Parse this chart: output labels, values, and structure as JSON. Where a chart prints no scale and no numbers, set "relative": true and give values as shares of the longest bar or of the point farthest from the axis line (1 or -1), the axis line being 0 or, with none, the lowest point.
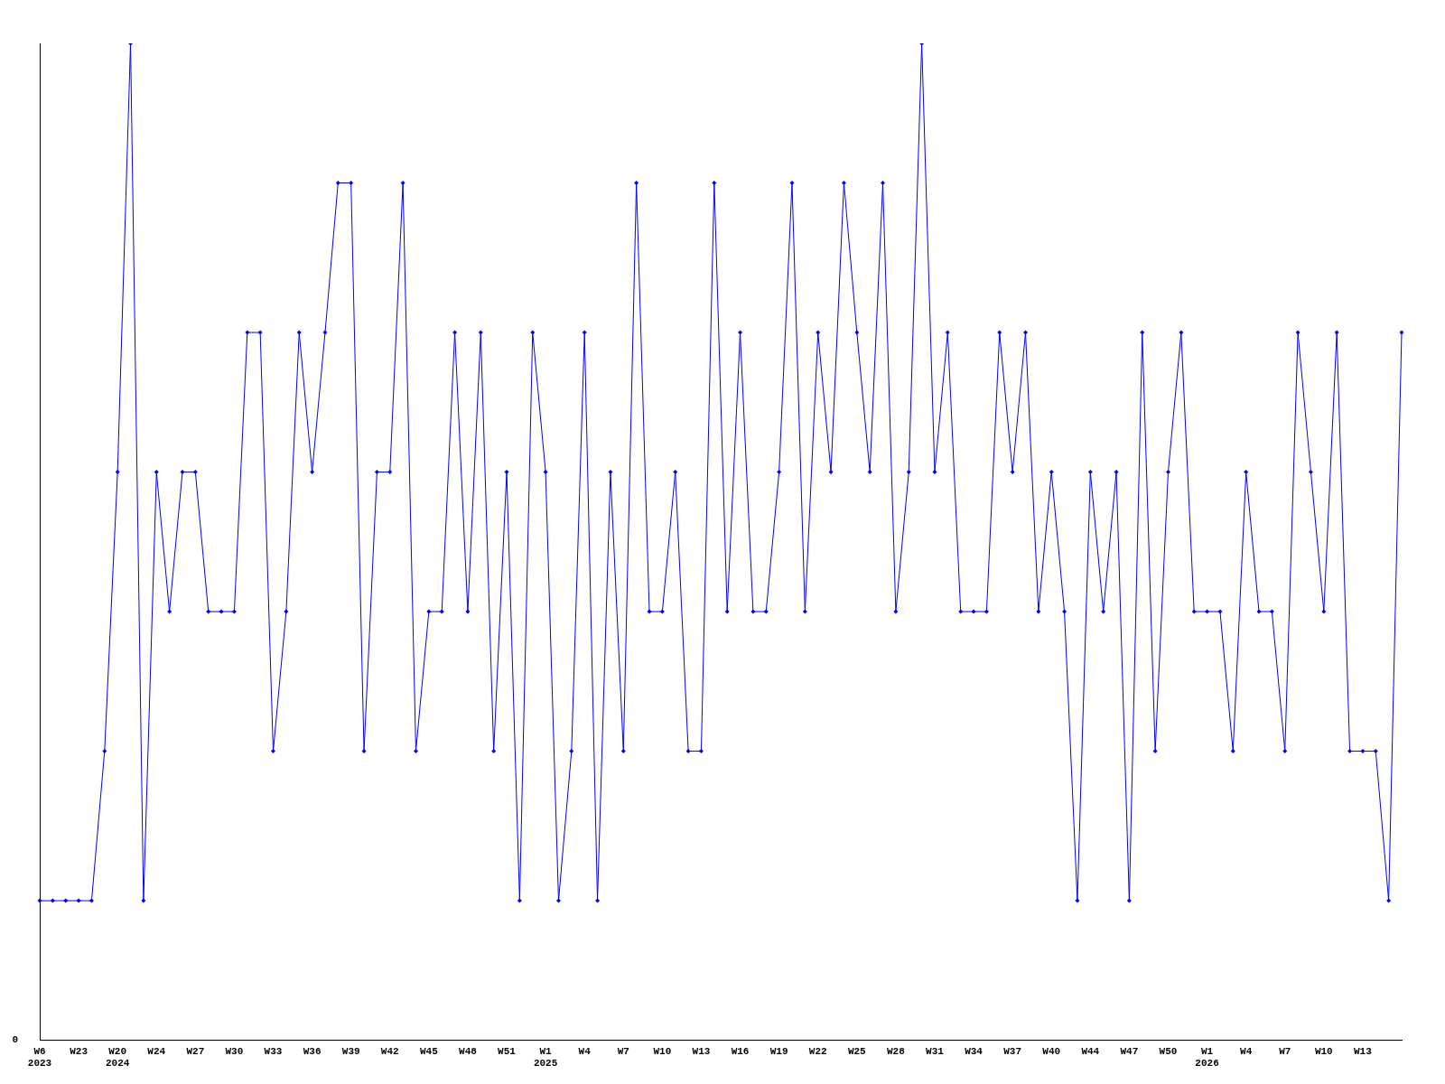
{
  "chart_data": {
    "type": "line",
    "relative": true,
    "color": "#0000ff",
    "marker": "diamond",
    "line_style": "solid",
    "grid": false,
    "legend": false,
    "annotations": [
      "0"
    ],
    "categories": [
      "W6\n2023",
      null,
      null,
      "W23",
      null,
      null,
      "W20\n2024",
      null,
      null,
      "W24",
      null,
      null,
      "W27",
      null,
      null,
      "W30",
      null,
      null,
      "W33",
      null,
      null,
      "W36",
      null,
      null,
      "W39",
      null,
      null,
      "W42",
      null,
      null,
      "W45",
      null,
      null,
      "W48",
      null,
      null,
      "W51",
      null,
      null,
      "W1\n2025",
      null,
      null,
      "W4",
      null,
      null,
      "W7",
      null,
      null,
      "W10",
      null,
      null,
      "W13",
      null,
      null,
      "W16",
      null,
      null,
      "W19",
      null,
      null,
      "W22",
      null,
      null,
      "W25",
      null,
      null,
      "W28",
      null,
      null,
      "W31",
      null,
      null,
      "W34",
      null,
      null,
      "W37",
      null,
      null,
      "W40",
      null,
      null,
      "W44",
      null,
      null,
      "W47",
      null,
      null,
      "W50",
      null,
      null,
      "W1\n2026",
      null,
      null,
      "W4",
      null,
      null,
      "W7",
      null,
      null,
      "W10",
      null,
      null,
      "W13",
      null,
      null,
      null
    ],
    "values": [
      0.14,
      0.14,
      0.14,
      0.14,
      0.14,
      0.29,
      0.57,
      1,
      0.14,
      0.57,
      0.43,
      0.57,
      0.57,
      0.43,
      0.43,
      0.43,
      0.71,
      0.71,
      0.29,
      0.43,
      0.71,
      0.57,
      0.71,
      0.86,
      0.86,
      0.29,
      0.57,
      0.57,
      0.86,
      0.29,
      0.43,
      0.43,
      0.71,
      0.43,
      0.71,
      0.29,
      0.57,
      0.14,
      0.71,
      0.57,
      0.14,
      0.29,
      0.71,
      0.14,
      0.57,
      0.29,
      0.86,
      0.43,
      0.43,
      0.57,
      0.29,
      0.29,
      0.86,
      0.43,
      0.71,
      0.43,
      0.43,
      0.57,
      0.86,
      0.43,
      0.71,
      0.57,
      0.86,
      0.71,
      0.57,
      0.86,
      0.43,
      0.57,
      1,
      0.57,
      0.71,
      0.43,
      0.43,
      0.43,
      0.71,
      0.57,
      0.71,
      0.43,
      0.57,
      0.43,
      0.14,
      0.57,
      0.43,
      0.57,
      0.14,
      0.71,
      0.29,
      0.57,
      0.71,
      0.43,
      0.43,
      0.43,
      0.29,
      0.57,
      0.43,
      0.43,
      0.29,
      0.71,
      0.57,
      0.43,
      0.71,
      0.29,
      0.29,
      0.29,
      0.14,
      0.71
    ]
  }
}
